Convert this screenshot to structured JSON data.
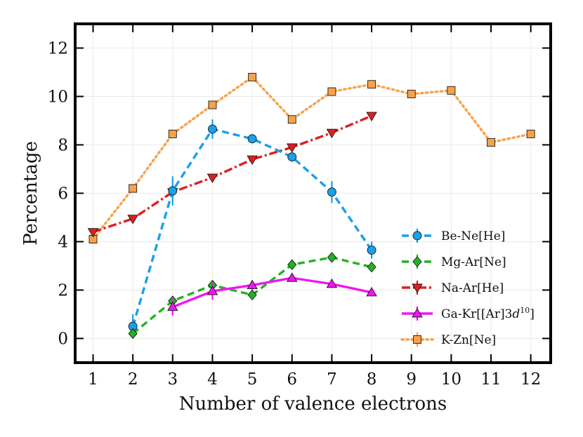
{
  "chart_data": {
    "type": "line",
    "title": "",
    "xlabel": "Number of valence electrons",
    "ylabel": "Percentage",
    "xlim": [
      0.55,
      12.5
    ],
    "ylim": [
      -1.0,
      13.0
    ],
    "xticks": [
      1,
      2,
      3,
      4,
      5,
      6,
      7,
      8,
      9,
      10,
      11,
      12
    ],
    "yticks": [
      0,
      2,
      4,
      6,
      8,
      10,
      12
    ],
    "grid": true,
    "legend_position": "lower-right",
    "series": [
      {
        "name": "K-Zn[Ne]",
        "legend_label": "K-Zn[Ne]",
        "color": "#f7a24a",
        "linestyle": "dotted",
        "marker": "square",
        "x": [
          1,
          2,
          3,
          4,
          5,
          6,
          7,
          8,
          9,
          10,
          11,
          12
        ],
        "y": [
          4.1,
          6.2,
          8.45,
          9.65,
          10.8,
          9.05,
          10.2,
          10.5,
          10.1,
          10.25,
          8.1,
          8.45
        ],
        "err": [
          0,
          0,
          0,
          0,
          0,
          0,
          0,
          0,
          0,
          0,
          0,
          0
        ]
      },
      {
        "name": "Na-Ar[He]",
        "legend_label": "Na-Ar[He]",
        "color": "#e01e1e",
        "linestyle": "dashdot",
        "marker": "triangle-down",
        "x": [
          1,
          2,
          3,
          4,
          5,
          6,
          7,
          8
        ],
        "y": [
          4.4,
          4.95,
          6.05,
          6.65,
          7.4,
          7.9,
          8.5,
          9.2
        ],
        "err": [
          0,
          0,
          0,
          0,
          0,
          0,
          0,
          0
        ]
      },
      {
        "name": "Be-Ne[He]",
        "legend_label": "Be-Ne[He]",
        "color": "#1a9fe8",
        "linestyle": "dashed",
        "marker": "circle",
        "x": [
          2,
          3,
          4,
          5,
          6,
          7,
          8
        ],
        "y": [
          0.5,
          6.1,
          8.65,
          8.25,
          7.5,
          6.05,
          3.65
        ],
        "err": [
          0.5,
          0.6,
          0.4,
          0.15,
          0.15,
          0.45,
          0.35
        ]
      },
      {
        "name": "Mg-Ar[Ne]",
        "legend_label": "Mg-Ar[Ne]",
        "color": "#22b322",
        "linestyle": "dashed",
        "marker": "diamond",
        "x": [
          2,
          3,
          4,
          5,
          6,
          7,
          8
        ],
        "y": [
          0.2,
          1.55,
          2.2,
          1.8,
          3.05,
          3.35,
          2.95
        ],
        "err": [
          0.15,
          0.2,
          0.2,
          0.15,
          0.15,
          0.15,
          0.1
        ]
      },
      {
        "name": "Ga-Kr[[Ar]3d10]",
        "legend_label": "Ga-Kr[[Ar]3",
        "legend_label_italic": "d",
        "legend_label_sup": "10",
        "legend_label_tail": "]",
        "color": "#f015f0",
        "linestyle": "solid",
        "marker": "triangle-up",
        "x": [
          3,
          4,
          5,
          6,
          7,
          8
        ],
        "y": [
          1.3,
          1.95,
          2.2,
          2.5,
          2.25,
          1.9
        ],
        "err": [
          0.35,
          0.35,
          0.2,
          0.15,
          0.15,
          0.1
        ]
      }
    ],
    "legend_order": [
      "Be-Ne[He]",
      "Mg-Ar[Ne]",
      "Na-Ar[He]",
      "Ga-Kr[[Ar]3d10]",
      "K-Zn[Ne]"
    ]
  }
}
